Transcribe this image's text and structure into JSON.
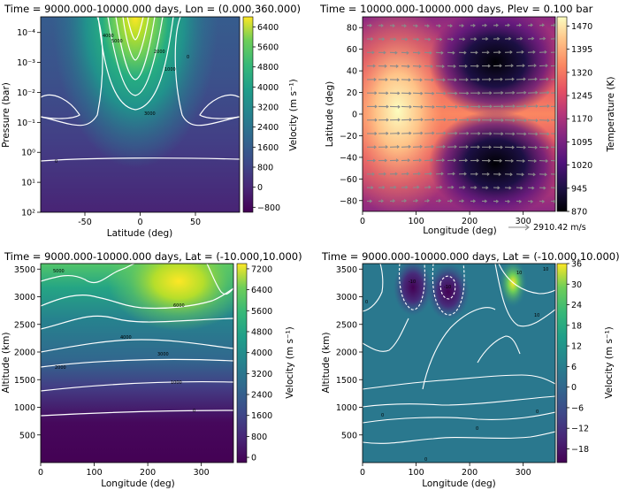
{
  "chart_data": [
    {
      "type": "heatmap",
      "title": "Time = 9000.000-10000.000 days, Lon = (0.000,360.000)",
      "xlabel": "Latitude (deg)",
      "ylabel": "Pressure (bar)",
      "xlim": [
        -90,
        90
      ],
      "ylim": [
        100,
        3e-05
      ],
      "y_scale": "log",
      "xticks": [
        "-50",
        "0",
        "50"
      ],
      "yticks": [
        "10⁻⁴",
        "10⁻³",
        "10⁻²",
        "10⁻¹",
        "10⁰",
        "10¹",
        "10²"
      ],
      "colorbar": {
        "label": "Velocity (m s⁻¹)",
        "ticks": [
          "6400",
          "5600",
          "4800",
          "4000",
          "3200",
          "2400",
          "1600",
          "800",
          "0",
          "−800"
        ],
        "range": [
          -1000,
          6800
        ],
        "colormap": "viridis"
      },
      "contour_labels": [
        "0",
        "1000",
        "2000",
        "3000",
        "4000",
        "5000",
        "0"
      ],
      "description_values": {
        "jet_peak_latitude": 0,
        "jet_peak_velocity": 6600
      }
    },
    {
      "type": "heatmap",
      "title": "Time = 10000.000-10000.000 days, Plev = 0.100 bar",
      "xlabel": "Longitude (deg)",
      "ylabel": "Latitude (deg)",
      "xlim": [
        0,
        360
      ],
      "ylim": [
        -90,
        90
      ],
      "xticks": [
        "0",
        "100",
        "200",
        "300"
      ],
      "yticks": [
        "80",
        "60",
        "40",
        "20",
        "0",
        "−20",
        "−40",
        "−60",
        "−80"
      ],
      "colorbar": {
        "label": "Temperature (K)",
        "ticks": [
          "1470",
          "1395",
          "1320",
          "1245",
          "1170",
          "1095",
          "1020",
          "945",
          "870"
        ],
        "range": [
          870,
          1500
        ],
        "colormap": "magma"
      },
      "quiver_key": "2910.42 m/s",
      "features": {
        "hot_spot_longitude": 40,
        "cold_vortex_longitude": 250,
        "cold_vortex_latitudes": [
          40,
          -40
        ]
      }
    },
    {
      "type": "heatmap",
      "title": "Time = 9000.000-10000.000 days, Lat = (-10.000,10.000)",
      "xlabel": "Longitude (deg)",
      "ylabel": "Altitude (km)",
      "xlim": [
        0,
        360
      ],
      "ylim": [
        0,
        3600
      ],
      "xticks": [
        "0",
        "100",
        "200",
        "300"
      ],
      "yticks": [
        "3500",
        "3000",
        "2500",
        "2000",
        "1500",
        "1000",
        "500"
      ],
      "colorbar": {
        "label": "Velocity (m s⁻¹)",
        "ticks": [
          "7200",
          "6400",
          "5600",
          "4800",
          "4000",
          "3200",
          "2400",
          "1600",
          "800",
          "0"
        ],
        "range": [
          -200,
          7400
        ],
        "colormap": "viridis"
      },
      "contour_labels": [
        "5000",
        "6000",
        "4000",
        "3000",
        "2000",
        "1000",
        "0"
      ]
    },
    {
      "type": "heatmap",
      "title": "Time = 9000.000-10000.000 days, Lat = (-10.000,10.000)",
      "xlabel": "Longitude (deg)",
      "ylabel": "Altitude (km)",
      "xlim": [
        0,
        360
      ],
      "ylim": [
        0,
        3600
      ],
      "xticks": [
        "0",
        "100",
        "200",
        "300"
      ],
      "yticks": [
        "3500",
        "3000",
        "2500",
        "2000",
        "1500",
        "1000",
        "500"
      ],
      "colorbar": {
        "label": "Velocity (m s⁻¹)",
        "ticks": [
          "36",
          "30",
          "24",
          "18",
          "12",
          "6",
          "0",
          "−6",
          "−12",
          "−18"
        ],
        "range": [
          -22,
          36
        ],
        "colormap": "viridis"
      },
      "contour_labels": [
        "-10",
        "-10",
        "10",
        "10",
        "0",
        "0",
        "0",
        "0",
        "0",
        "10"
      ]
    }
  ]
}
